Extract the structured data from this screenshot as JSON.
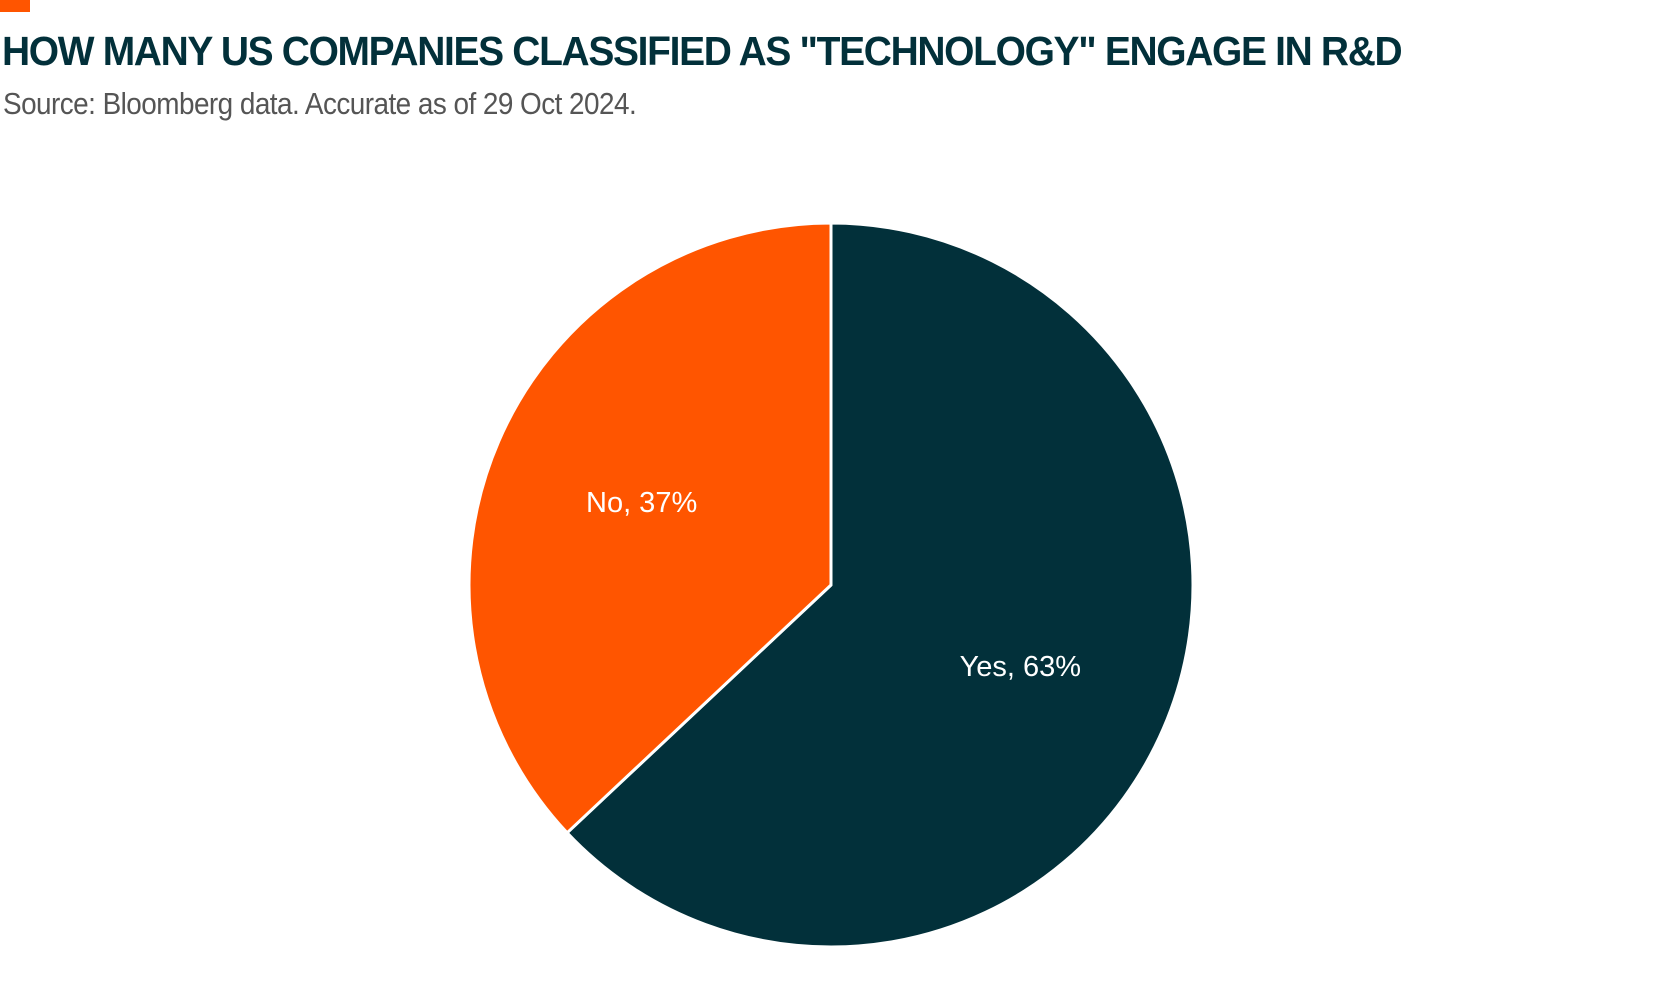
{
  "chart_data": {
    "type": "pie",
    "title": "HOW MANY US COMPANIES CLASSIFIED AS \"TECHNOLOGY\" ENGAGE IN R&D",
    "subtitle": "Source: Bloomberg data. Accurate as of 29 Oct 2024.",
    "slices": [
      {
        "label": "Yes, 63%",
        "value": 63,
        "color": "#02303a"
      },
      {
        "label": "No, 37%",
        "value": 37,
        "color": "#ff5500"
      }
    ],
    "start_angle": "12 o'clock",
    "direction": "clockwise"
  },
  "colors": {
    "accent": "#ff5500",
    "title": "#02303a",
    "subtitle": "#555555",
    "slice_border": "#ffffff"
  }
}
